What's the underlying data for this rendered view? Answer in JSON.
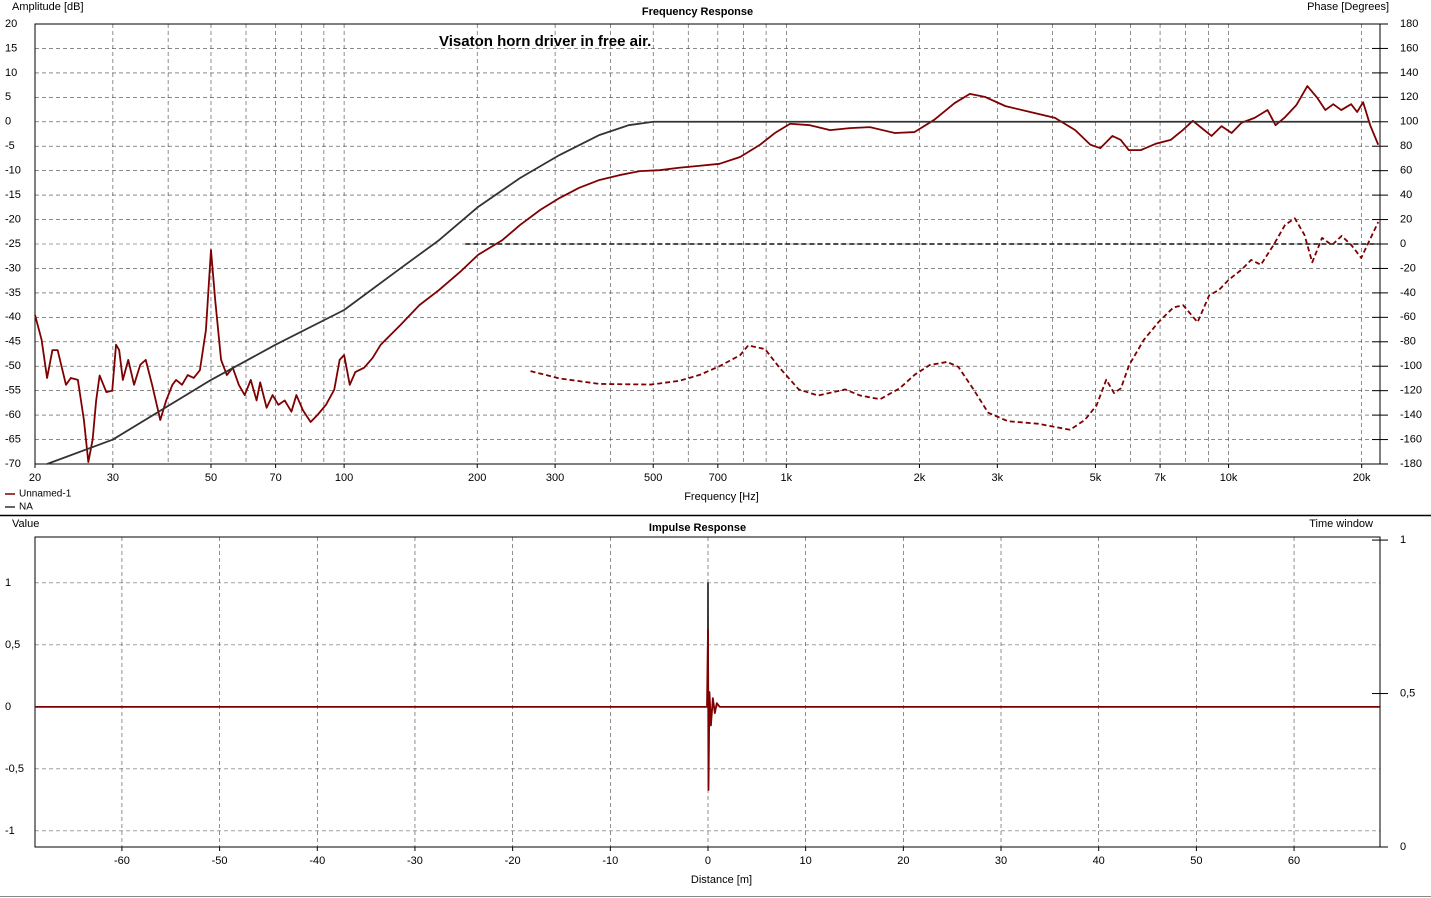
{
  "chart_data": [
    {
      "type": "line",
      "title": "Frequency Response",
      "annotation": "Visaton horn driver in free air.",
      "ylabel": "Amplitude [dB]",
      "y2label": "Phase [Degrees]",
      "xlabel": "Frequency [Hz]",
      "xscale": "log",
      "grid": true,
      "legend": "bottom-left",
      "xlim": [
        20,
        22000
      ],
      "ylim": [
        -70,
        20
      ],
      "y2lim": [
        -180,
        180
      ],
      "xticks": [
        20,
        30,
        50,
        70,
        100,
        200,
        300,
        500,
        700,
        {
          "value": 1000,
          "label": "1k"
        },
        {
          "value": 2000,
          "label": "2k"
        },
        {
          "value": 3000,
          "label": "3k"
        },
        {
          "value": 5000,
          "label": "5k"
        },
        {
          "value": 7000,
          "label": "7k"
        },
        {
          "value": 10000,
          "label": "10k"
        },
        {
          "value": 20000,
          "label": "20k"
        }
      ],
      "xgrid_minor": [
        40,
        60,
        80,
        90,
        400,
        600,
        800,
        900,
        4000,
        6000,
        8000,
        9000
      ],
      "yticks": [
        20,
        15,
        10,
        5,
        0,
        -5,
        -10,
        -15,
        -20,
        -25,
        -30,
        -35,
        -40,
        -45,
        -50,
        -55,
        -60,
        -65,
        -70
      ],
      "y2ticks": [
        180,
        160,
        140,
        120,
        100,
        80,
        60,
        40,
        20,
        0,
        -20,
        -40,
        -60,
        -80,
        -100,
        -120,
        -140,
        -160,
        -180
      ],
      "series": [
        {
          "name": "Unnamed-1",
          "color": "#7f0000",
          "x": [
            20,
            20.7,
            21.3,
            21.9,
            22.5,
            23.5,
            24.1,
            25,
            25.8,
            26.4,
            27,
            27.5,
            28,
            29,
            29.9,
            30.5,
            31,
            31.6,
            32.5,
            33.5,
            34.6,
            35.6,
            36.8,
            38.4,
            39.6,
            40.9,
            41.7,
            43,
            44.3,
            45.7,
            47.2,
            48.7,
            50,
            51.1,
            52.7,
            54.3,
            56,
            57.8,
            59.6,
            61.5,
            63.4,
            64.6,
            66.8,
            68.9,
            71,
            73.4,
            76,
            78,
            80.7,
            84,
            87,
            91,
            95,
            97.7,
            100,
            103,
            106,
            111,
            116,
            121,
            134,
            148,
            164,
            183,
            201,
            228,
            250,
            278,
            307,
            340,
            378,
            420,
            466,
            517,
            572,
            638,
            706,
            786,
            872,
            942,
            1020,
            1130,
            1256,
            1392,
            1545,
            1760,
            1950,
            2160,
            2400,
            2600,
            2810,
            3130,
            3560,
            4050,
            4500,
            4870,
            5130,
            5460,
            5700,
            5950,
            6330,
            6840,
            7400,
            7880,
            8300,
            8700,
            9150,
            9640,
            10160,
            10700,
            11450,
            12250,
            12770,
            13370,
            14230,
            15070,
            15870,
            16550,
            17250,
            17980,
            18930,
            19530,
            20150,
            20900,
            21800
          ],
          "values": [
            -39.5,
            -44.6,
            -52.4,
            -46.7,
            -46.7,
            -53.8,
            -52.4,
            -52.8,
            -61,
            -69.6,
            -65,
            -57,
            -51.9,
            -55.3,
            -55,
            -45.6,
            -46.7,
            -52.8,
            -48.7,
            -53.8,
            -49.7,
            -48.7,
            -53.8,
            -61,
            -57,
            -53.8,
            -52.8,
            -53.8,
            -51.8,
            -52.4,
            -50.8,
            -42.6,
            -26.2,
            -36.4,
            -48.7,
            -51.8,
            -50.3,
            -53.8,
            -55.9,
            -52.8,
            -57,
            -53.3,
            -58.5,
            -55.9,
            -57.9,
            -57,
            -59.3,
            -55.9,
            -59,
            -61.4,
            -60,
            -57.9,
            -54.8,
            -48.7,
            -47.7,
            -53.8,
            -51.2,
            -50.3,
            -48.3,
            -45.6,
            -41.6,
            -37.5,
            -34.4,
            -30.7,
            -27.2,
            -24.2,
            -21.1,
            -18,
            -15.6,
            -13.5,
            -11.9,
            -10.9,
            -10.1,
            -9.9,
            -9.4,
            -9,
            -8.6,
            -7.2,
            -4.7,
            -2.3,
            -0.4,
            -0.7,
            -1.7,
            -1.3,
            -1.1,
            -2.3,
            -2.1,
            0.4,
            3.8,
            5.7,
            5.1,
            3.2,
            2,
            0.8,
            -1.7,
            -4.7,
            -5.4,
            -2.9,
            -3.7,
            -5.8,
            -5.8,
            -4.5,
            -3.7,
            -1.7,
            0.2,
            -1.3,
            -2.9,
            -0.9,
            -2.3,
            -0.2,
            0.8,
            2.4,
            -0.7,
            0.8,
            3.4,
            7.3,
            4.9,
            2.4,
            3.6,
            2.4,
            3.6,
            2,
            4,
            -0.7,
            -4.7
          ]
        },
        {
          "name": "NA",
          "color": "#333333",
          "x": [
            21.3,
            30,
            50,
            70,
            100,
            134,
            164,
            201,
            250,
            307,
            378,
            440,
            500,
            20900
          ],
          "values": [
            -70,
            -65,
            -52.8,
            -45.6,
            -38.5,
            -30,
            -24.2,
            -17.4,
            -11.5,
            -6.8,
            -2.7,
            -0.7,
            0,
            0
          ]
        },
        {
          "color": "#7f0000",
          "axis": "y2",
          "dash": true,
          "x": [
            264,
            307,
            378,
            494,
            572,
            638,
            706,
            786,
            820,
            895,
            964,
            1067,
            1180,
            1358,
            1470,
            1630,
            1805,
            1950,
            2110,
            2310,
            2450,
            2650,
            2860,
            3170,
            3700,
            4380,
            4730,
            5030,
            5290,
            5510,
            5710,
            5960,
            6430,
            6940,
            7500,
            7890,
            8510,
            9040,
            9510,
            10000,
            10700,
            11250,
            11830,
            12630,
            13420,
            14120,
            14850,
            15460,
            16270,
            17120,
            18020,
            18960,
            19950,
            21800
          ],
          "values": [
            -104,
            -110,
            -114.5,
            -115,
            -112,
            -107,
            -100,
            -91,
            -83,
            -86,
            -101,
            -119,
            -124,
            -119,
            -124,
            -127,
            -118,
            -107,
            -99,
            -96.5,
            -100.6,
            -119,
            -138,
            -145,
            -147,
            -152,
            -144,
            -132,
            -111,
            -122,
            -118,
            -99,
            -78.5,
            -64,
            -52,
            -50,
            -64,
            -42,
            -37.6,
            -29.4,
            -21,
            -13,
            -17,
            -1,
            15.6,
            21,
            7.4,
            -15,
            5,
            -1,
            6.6,
            -1,
            -11.4,
            18
          ]
        },
        {
          "color": "#333333",
          "axis": "y2",
          "dash": true,
          "x": [
            188,
            21800
          ],
          "values": [
            0,
            0
          ]
        }
      ]
    },
    {
      "type": "line",
      "title": "Impulse Response",
      "ylabel": "Value",
      "y2label": "Time window",
      "xlabel": "Distance [m]",
      "xscale": "linear",
      "grid": true,
      "xlim": [
        -68.9,
        68.8
      ],
      "ylim": [
        -1.13,
        1.37
      ],
      "y2lim": [
        0,
        1.01
      ],
      "xticks": [
        -60,
        -50,
        -40,
        -30,
        -20,
        -10,
        0,
        10,
        20,
        30,
        40,
        50,
        60
      ],
      "yticks": [
        1,
        {
          "value": 0.5,
          "label": "0,5"
        },
        0,
        {
          "value": -0.5,
          "label": "-0,5"
        },
        -1
      ],
      "y2ticks": [
        1,
        {
          "value": 0.5,
          "label": "0,5"
        },
        0
      ],
      "series": [
        {
          "color": "#333333",
          "x": [
            -0.02,
            0,
            0.02
          ],
          "values": [
            0,
            1,
            0
          ]
        },
        {
          "color": "#7f0000",
          "x": [
            -68.9,
            -0.1,
            0,
            0.05,
            0.15,
            0.3,
            0.5,
            0.7,
            0.9,
            1.2,
            68.8
          ],
          "values": [
            0,
            0,
            0.62,
            -0.67,
            0.12,
            -0.15,
            0.07,
            -0.05,
            0.03,
            0,
            0
          ]
        }
      ]
    }
  ]
}
